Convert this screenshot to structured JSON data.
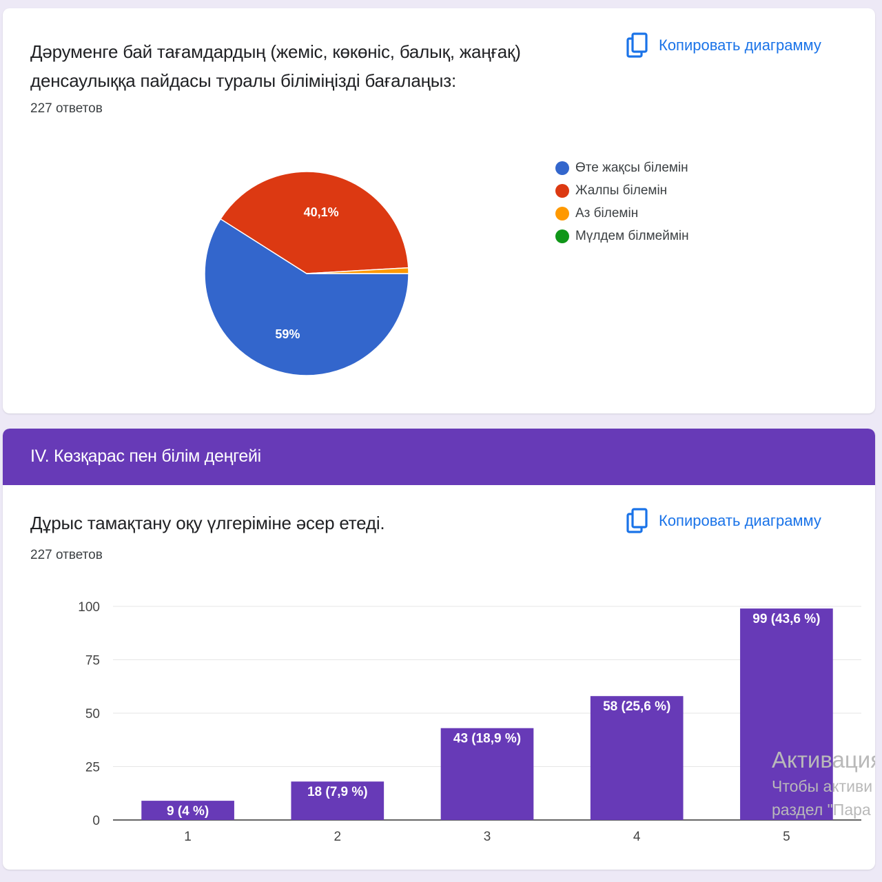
{
  "question1": {
    "title_line1": "Дәруменге бай тағамдардың (жеміс, көкөніс, балық, жаңғақ)",
    "title_line2": "денсаулыққа пайдасы туралы біліміңізді бағалаңыз:",
    "responses": "227 ответов",
    "copy_label": "Копировать диаграмму"
  },
  "section": {
    "title": "IV. Көзқарас пен білім деңгейі"
  },
  "question2": {
    "title": "Дұрыс тамақтану оқу үлгеріміне әсер етеді.",
    "responses": "227 ответов",
    "copy_label": "Копировать диаграмму"
  },
  "watermark": {
    "line1": "Активация",
    "line2": "Чтобы активи",
    "line3": "раздел \"Пара"
  },
  "colors": {
    "accent": "#673ab7",
    "link": "#1a73e8",
    "pie_blue": "#3366cc",
    "pie_red": "#dc3912",
    "pie_orange": "#ff9900",
    "pie_green": "#109618"
  },
  "icons": {
    "copy": "copy-icon"
  },
  "chart_data": [
    {
      "type": "pie",
      "slices": [
        {
          "label": "Өте жақсы білемін",
          "value": 59.0,
          "display": "59%",
          "color": "#3366cc"
        },
        {
          "label": "Жалпы білемін",
          "value": 40.1,
          "display": "40,1%",
          "color": "#dc3912"
        },
        {
          "label": "Аз білемін",
          "value": 0.9,
          "display": "",
          "color": "#ff9900"
        },
        {
          "label": "Мүлдем білмеймін",
          "value": 0.0,
          "display": "",
          "color": "#109618"
        }
      ],
      "legend_position": "right"
    },
    {
      "type": "bar",
      "categories": [
        "1",
        "2",
        "3",
        "4",
        "5"
      ],
      "values": [
        9,
        18,
        43,
        58,
        99
      ],
      "data_labels": [
        "9 (4 %)",
        "18 (7,9 %)",
        "43 (18,9 %)",
        "58 (25,6 %)",
        "99 (43,6 %)"
      ],
      "yticks": [
        "0",
        "25",
        "50",
        "75",
        "100"
      ],
      "ylim": [
        0,
        100
      ],
      "grid": true,
      "color": "#673ab7"
    }
  ]
}
